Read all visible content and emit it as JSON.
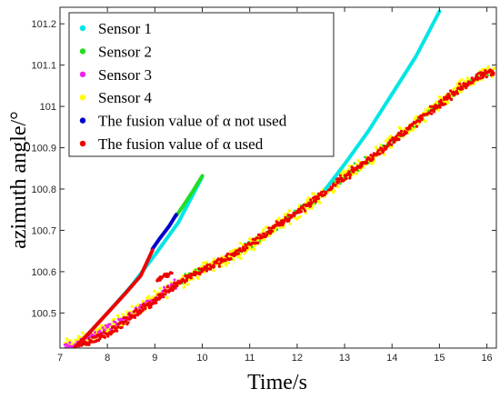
{
  "chart_data": {
    "type": "scatter",
    "xlabel": "Time/s",
    "ylabel": "azimuth angle/°",
    "xlim": [
      7,
      16.2
    ],
    "ylim": [
      100.415,
      101.24
    ],
    "x_ticks": [
      7,
      8,
      9,
      10,
      11,
      12,
      13,
      14,
      15,
      16
    ],
    "y_ticks": [
      100.5,
      100.6,
      100.7,
      100.8,
      100.9,
      101,
      101.1,
      101.2
    ],
    "x_tick_labels": [
      "7",
      "8",
      "9",
      "10",
      "11",
      "12",
      "13",
      "14",
      "15",
      "16"
    ],
    "y_tick_labels": [
      "100.5",
      "100.6",
      "100.7",
      "100.8",
      "100.9",
      "101",
      "101.1",
      "101.2"
    ],
    "legend_position": "top-left",
    "grid": false,
    "series": [
      {
        "name": "Sensor 1",
        "color": "#00e5e5",
        "display": "curve",
        "points": [
          [
            7.3,
            100.415
          ],
          [
            7.6,
            100.45
          ],
          [
            8.0,
            100.5
          ],
          [
            8.5,
            100.565
          ],
          [
            9.0,
            100.64
          ],
          [
            9.5,
            100.72
          ],
          [
            10.0,
            100.83
          ]
        ],
        "points_b": [
          [
            12.6,
            100.8
          ],
          [
            13.0,
            100.86
          ],
          [
            13.5,
            100.94
          ],
          [
            14.0,
            101.03
          ],
          [
            14.5,
            101.12
          ],
          [
            15.0,
            101.23
          ]
        ]
      },
      {
        "name": "Sensor 2",
        "color": "#22dd22",
        "display": "curve",
        "points": [
          [
            9.45,
            100.735
          ],
          [
            9.6,
            100.76
          ],
          [
            9.8,
            100.795
          ],
          [
            10.0,
            100.832
          ]
        ]
      },
      {
        "name": "Sensor 3",
        "color": "#ee22ee",
        "display": "scatter",
        "points": [
          [
            7.1,
            100.42
          ],
          [
            7.3,
            100.425
          ],
          [
            7.5,
            100.435
          ],
          [
            7.8,
            100.45
          ],
          [
            8.1,
            100.47
          ],
          [
            8.4,
            100.49
          ],
          [
            8.7,
            100.51
          ],
          [
            9.0,
            100.535
          ],
          [
            9.3,
            100.56
          ],
          [
            9.5,
            100.575
          ]
        ]
      },
      {
        "name": "Sensor 4",
        "color": "#ffff00",
        "display": "scatter",
        "points": [
          [
            7.1,
            100.42
          ],
          [
            7.5,
            100.435
          ],
          [
            8.0,
            100.46
          ],
          [
            8.5,
            100.5
          ],
          [
            9.0,
            100.535
          ],
          [
            9.5,
            100.575
          ],
          [
            10.0,
            100.605
          ],
          [
            10.5,
            100.63
          ],
          [
            11.0,
            100.665
          ],
          [
            11.5,
            100.705
          ],
          [
            12.0,
            100.745
          ],
          [
            12.5,
            100.785
          ],
          [
            13.0,
            100.83
          ],
          [
            13.5,
            100.87
          ],
          [
            14.0,
            100.915
          ],
          [
            14.5,
            100.96
          ],
          [
            15.0,
            101.005
          ],
          [
            15.5,
            101.05
          ],
          [
            16.0,
            101.08
          ]
        ]
      },
      {
        "name": "The fusion value of α not used",
        "color": "#0000cc",
        "display": "curve",
        "points": [
          [
            8.95,
            100.655
          ],
          [
            9.1,
            100.68
          ],
          [
            9.3,
            100.71
          ],
          [
            9.45,
            100.738
          ]
        ]
      },
      {
        "name": "The fusion value of α used",
        "color": "#ee0000",
        "display": "curve+scatter",
        "points": [
          [
            7.3,
            100.415
          ],
          [
            7.6,
            100.45
          ],
          [
            8.0,
            100.5
          ],
          [
            8.4,
            100.55
          ],
          [
            8.7,
            100.59
          ],
          [
            8.95,
            100.652
          ]
        ],
        "points_b": [
          [
            9.05,
            100.58
          ],
          [
            9.2,
            100.59
          ],
          [
            9.35,
            100.6
          ]
        ],
        "points_c": [
          [
            7.4,
            100.42
          ],
          [
            8.0,
            100.45
          ],
          [
            8.5,
            100.49
          ],
          [
            9.0,
            100.53
          ],
          [
            9.5,
            100.575
          ],
          [
            10.0,
            100.605
          ],
          [
            10.5,
            100.63
          ],
          [
            11.0,
            100.665
          ],
          [
            11.5,
            100.705
          ],
          [
            12.0,
            100.745
          ],
          [
            12.5,
            100.785
          ],
          [
            13.0,
            100.83
          ],
          [
            13.5,
            100.87
          ],
          [
            14.0,
            100.915
          ],
          [
            14.5,
            100.96
          ],
          [
            15.0,
            101.005
          ],
          [
            15.5,
            101.05
          ],
          [
            16.0,
            101.08
          ]
        ]
      }
    ]
  }
}
